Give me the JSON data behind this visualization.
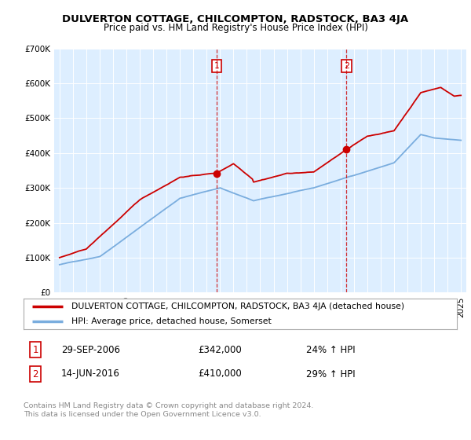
{
  "title": "DULVERTON COTTAGE, CHILCOMPTON, RADSTOCK, BA3 4JA",
  "subtitle": "Price paid vs. HM Land Registry's House Price Index (HPI)",
  "sale1_year": 2006.75,
  "sale1_value": 342000,
  "sale1_label": "1",
  "sale2_year": 2016.45,
  "sale2_value": 410000,
  "sale2_label": "2",
  "legend_line1": "DULVERTON COTTAGE, CHILCOMPTON, RADSTOCK, BA3 4JA (detached house)",
  "legend_line2": "HPI: Average price, detached house, Somerset",
  "table_row1": [
    "1",
    "29-SEP-2006",
    "£342,000",
    "24% ↑ HPI"
  ],
  "table_row2": [
    "2",
    "14-JUN-2016",
    "£410,000",
    "29% ↑ HPI"
  ],
  "footer": "Contains HM Land Registry data © Crown copyright and database right 2024.\nThis data is licensed under the Open Government Licence v3.0.",
  "red_color": "#cc0000",
  "blue_color": "#7aadde",
  "bg_color": "#ddeeff",
  "plot_bg": "#ffffff",
  "ylim": [
    0,
    700000
  ],
  "yticks": [
    0,
    100000,
    200000,
    300000,
    400000,
    500000,
    600000,
    700000
  ]
}
